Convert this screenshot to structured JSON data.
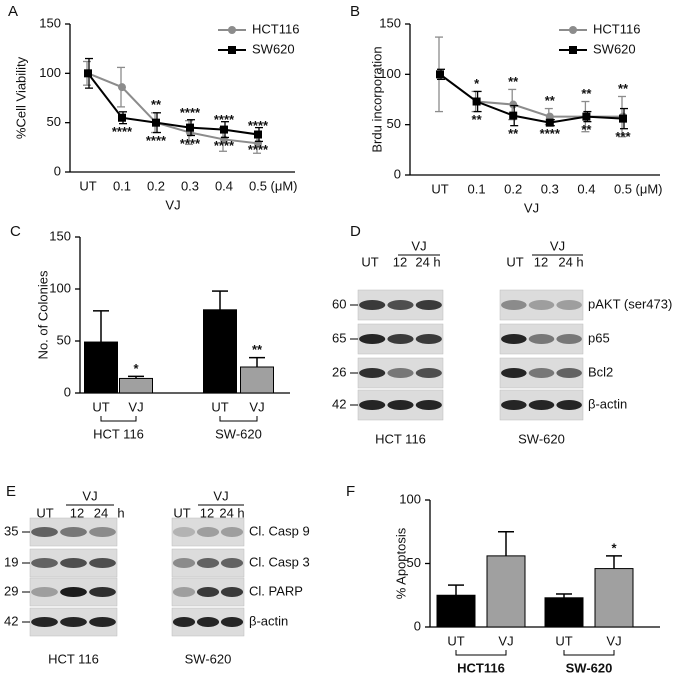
{
  "panel_labels": [
    "A",
    "B",
    "C",
    "D",
    "E",
    "F"
  ],
  "chart_data": [
    {
      "type": "line",
      "ylabel": "%Cell Viability",
      "xlabel": "VJ",
      "x_unit": "(μM)",
      "categories": [
        "UT",
        "0.1",
        "0.2",
        "0.3",
        "0.4",
        "0.5"
      ],
      "ylim": [
        0,
        150
      ],
      "yticks": [
        0,
        50,
        100,
        150
      ],
      "series": [
        {
          "name": "HCT116",
          "color": "#8c8c8c",
          "marker": "circle",
          "values": [
            100,
            86,
            50,
            40,
            33,
            29
          ],
          "errors": [
            12,
            20,
            10,
            12,
            12,
            10
          ],
          "annotations": [
            null,
            null,
            "**",
            "****",
            "****",
            "****"
          ],
          "annotation_side": "above"
        },
        {
          "name": "SW620",
          "color": "#000000",
          "marker": "square",
          "values": [
            100,
            55,
            50,
            45,
            43,
            38
          ],
          "errors": [
            15,
            6,
            10,
            8,
            8,
            7
          ],
          "annotations": [
            null,
            "****",
            "****",
            "****",
            "****",
            "****"
          ],
          "annotation_side": "below"
        }
      ]
    },
    {
      "type": "line",
      "ylabel": "Brdu incorporation",
      "xlabel": "VJ",
      "x_unit": "(μM)",
      "categories": [
        "UT",
        "0.1",
        "0.2",
        "0.3",
        "0.4",
        "0.5"
      ],
      "ylim": [
        0,
        150
      ],
      "yticks": [
        0,
        50,
        100,
        150
      ],
      "series": [
        {
          "name": "HCT116",
          "color": "#8c8c8c",
          "marker": "circle",
          "values": [
            100,
            73,
            70,
            58,
            58,
            58
          ],
          "errors": [
            37,
            10,
            15,
            8,
            15,
            20
          ],
          "annotations": [
            null,
            "*",
            "**",
            "**",
            "**",
            "**"
          ],
          "annotation_side": "above"
        },
        {
          "name": "SW620",
          "color": "#000000",
          "marker": "square",
          "values": [
            100,
            73,
            59,
            52,
            58,
            56
          ],
          "errors": [
            5,
            10,
            10,
            3,
            5,
            10
          ],
          "annotations": [
            null,
            "**",
            "**",
            "****",
            "**",
            "***"
          ],
          "annotation_side": "below"
        }
      ]
    },
    {
      "type": "bar",
      "ylabel": "No. of Colonies",
      "categories": [
        "UT",
        "VJ",
        "UT",
        "VJ"
      ],
      "groups": [
        "HCT 116",
        "SW-620"
      ],
      "group_bold": false,
      "values": [
        49,
        14,
        80,
        25
      ],
      "errors": [
        30,
        2,
        18,
        9
      ],
      "annotations": [
        null,
        "*",
        null,
        "**"
      ],
      "colors": [
        "#000000",
        "#a0a0a0",
        "#000000",
        "#a0a0a0"
      ],
      "ylim": [
        0,
        150
      ],
      "yticks": [
        0,
        50,
        100,
        150
      ]
    },
    {
      "type": "bar",
      "ylabel": "% Apoptosis",
      "categories": [
        "UT",
        "VJ",
        "UT",
        "VJ"
      ],
      "groups": [
        "HCT116",
        "SW-620"
      ],
      "group_bold": true,
      "values": [
        25,
        56,
        23,
        46
      ],
      "errors": [
        8,
        19,
        3,
        10
      ],
      "annotations": [
        null,
        null,
        null,
        "*"
      ],
      "colors": [
        "#000000",
        "#a0a0a0",
        "#000000",
        "#a0a0a0"
      ],
      "ylim": [
        0,
        100
      ],
      "yticks": [
        0,
        50,
        100
      ]
    }
  ],
  "blots": [
    {
      "header": "VJ",
      "lanes": [
        "UT",
        "12",
        "24 h"
      ],
      "cell_line": "HCT 116",
      "markers": [
        60,
        65,
        26,
        42
      ]
    },
    {
      "header": "VJ",
      "lanes": [
        "UT",
        "12",
        "24 h"
      ],
      "cell_line": "SW-620",
      "proteins": [
        "pAKT (ser473)",
        "p65",
        "Bcl2",
        "β-actin"
      ]
    },
    {
      "header": "VJ",
      "lanes": [
        "UT",
        "12",
        "24",
        "h"
      ],
      "cell_line": "HCT 116",
      "markers": [
        35,
        19,
        29,
        42
      ]
    },
    {
      "header": "VJ",
      "lanes": [
        "UT",
        "12",
        "24 h"
      ],
      "cell_line": "SW-620",
      "proteins": [
        "Cl. Casp 9",
        "Cl. Casp 3",
        "Cl. PARP",
        "β-actin"
      ]
    }
  ]
}
